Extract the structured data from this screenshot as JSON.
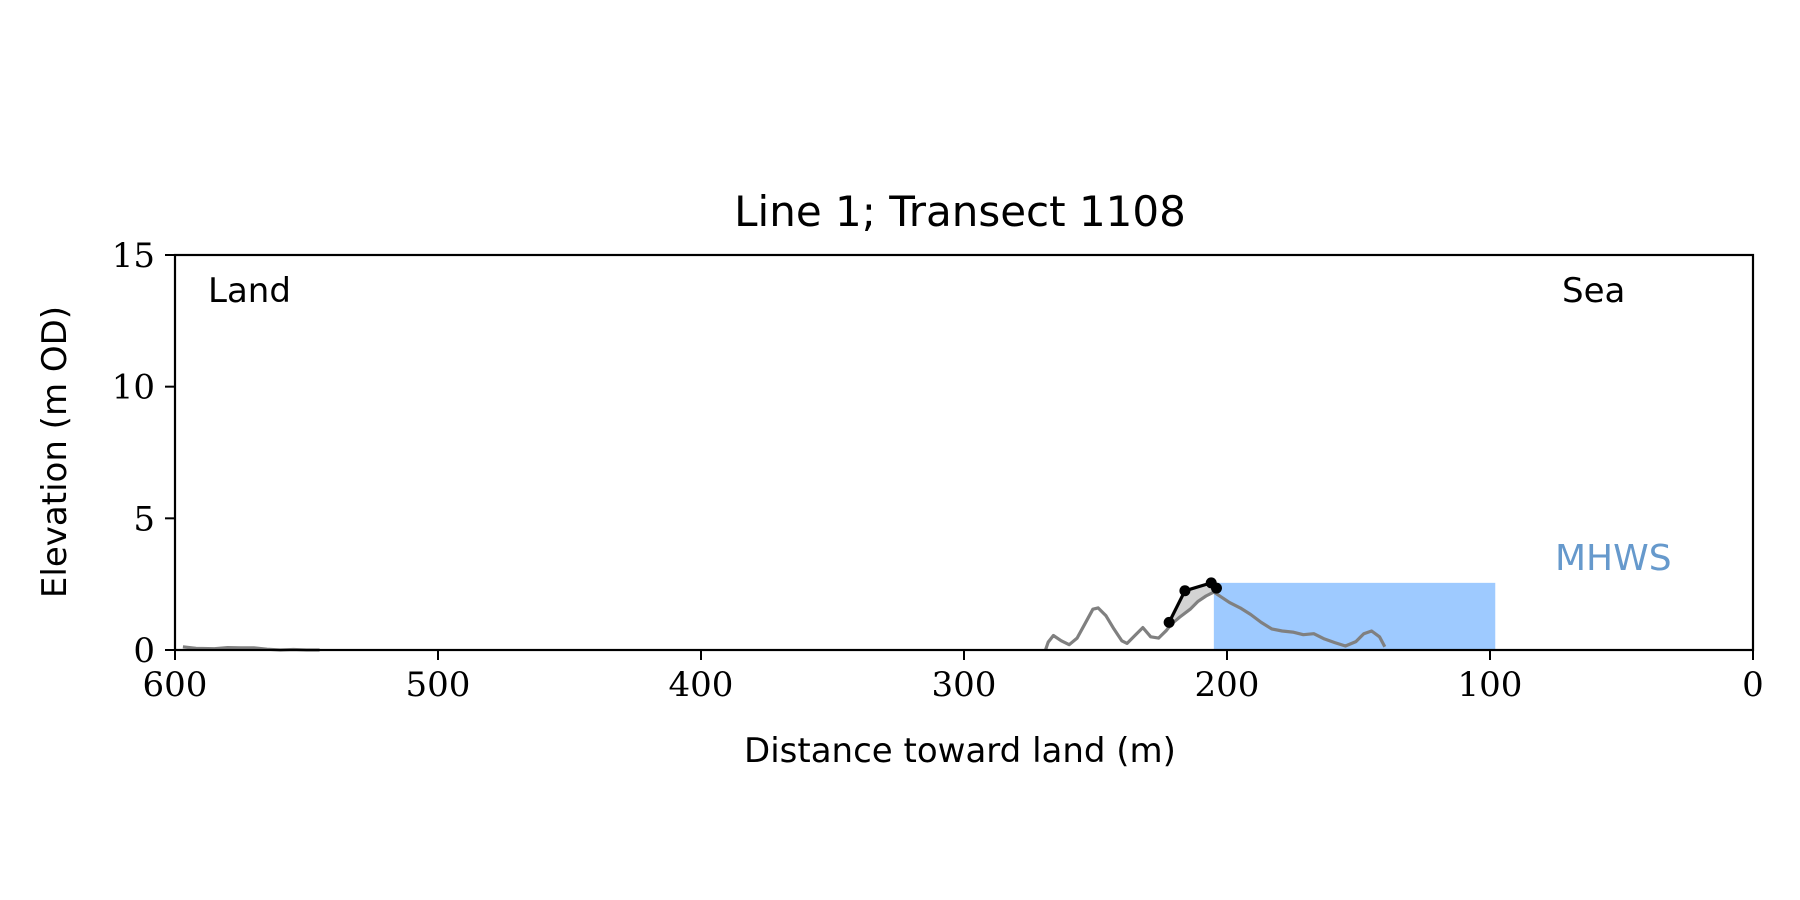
{
  "chart_data": {
    "type": "line",
    "title": "Line 1; Transect 1108",
    "xlabel": "Distance toward land (m)",
    "ylabel": "Elevation (m OD)",
    "xlim": [
      600,
      0
    ],
    "ylim": [
      0,
      15
    ],
    "x_reversed": true,
    "xticks": [
      600,
      500,
      400,
      300,
      200,
      100,
      0
    ],
    "yticks": [
      0,
      5,
      10,
      15
    ],
    "grid": false,
    "annotations": {
      "land": "Land",
      "sea": "Sea",
      "mhws": "MHWS"
    },
    "colors": {
      "profile": "#808080",
      "crest": "#000000",
      "fill": "#d3d3d3",
      "water": "#9ecaff",
      "mhws_text": "#6699cc"
    },
    "mhws": {
      "level": 2.55,
      "x_from": 205,
      "x_to": 98
    },
    "profile": {
      "x": [
        597,
        592,
        585,
        580,
        575,
        570,
        565,
        560,
        555,
        550,
        545
      ],
      "y": [
        0.12,
        0.06,
        0.05,
        0.09,
        0.08,
        0.08,
        0.03,
        0.0,
        0.02,
        0.0,
        0.0
      ]
    },
    "profile_2": {
      "x": [
        269,
        268,
        266,
        263,
        260,
        257,
        254,
        251,
        249,
        246,
        243,
        240,
        238,
        235,
        232,
        229,
        226,
        223,
        221,
        218,
        214,
        211,
        208,
        205,
        202,
        199,
        195,
        191,
        187,
        183,
        179,
        175,
        171,
        167,
        163,
        159,
        155,
        151,
        148,
        145,
        142,
        140
      ],
      "y": [
        0.0,
        0.3,
        0.55,
        0.35,
        0.2,
        0.45,
        1.0,
        1.55,
        1.6,
        1.3,
        0.8,
        0.35,
        0.25,
        0.55,
        0.85,
        0.5,
        0.45,
        0.75,
        1.0,
        1.25,
        1.55,
        1.85,
        2.05,
        2.2,
        2.0,
        1.8,
        1.6,
        1.35,
        1.05,
        0.8,
        0.72,
        0.68,
        0.58,
        0.62,
        0.42,
        0.28,
        0.15,
        0.32,
        0.62,
        0.72,
        0.5,
        0.12
      ]
    },
    "crest": {
      "x": [
        222,
        216,
        206,
        204
      ],
      "y": [
        1.05,
        2.25,
        2.55,
        2.35
      ]
    },
    "fill_region": {
      "x": [
        222,
        216,
        206,
        204,
        207,
        212,
        222
      ],
      "y": [
        1.05,
        2.25,
        2.55,
        2.35,
        2.1,
        1.7,
        1.05
      ]
    }
  }
}
